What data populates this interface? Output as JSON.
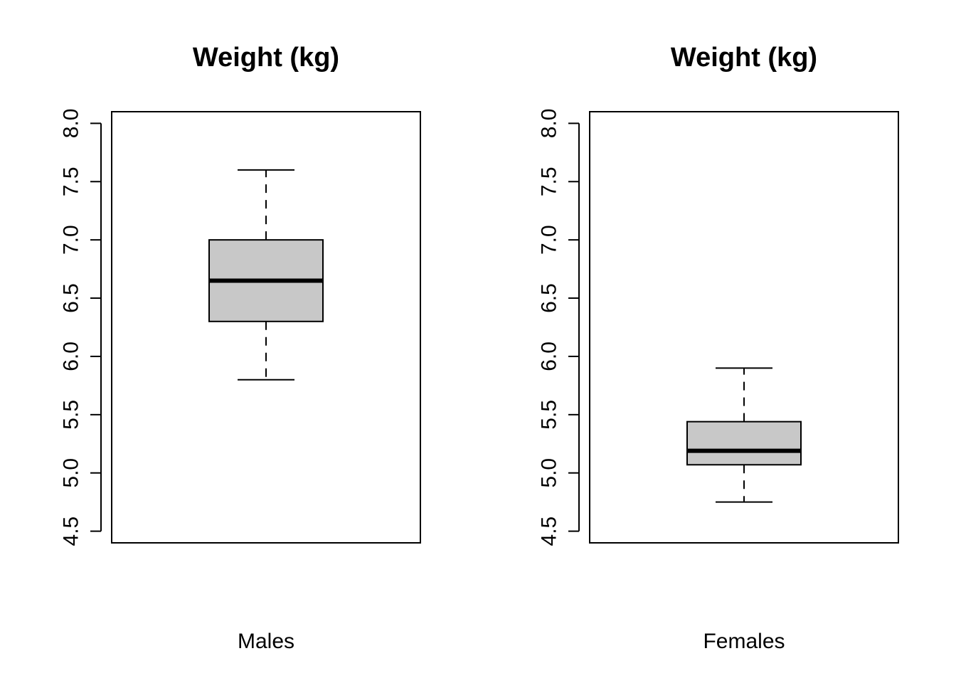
{
  "chart_data": [
    {
      "type": "box",
      "title": "Weight (kg)",
      "xlabel": "Males",
      "ylabel": "",
      "ylim": [
        4.4,
        8.1
      ],
      "yticks": [
        4.5,
        5.0,
        5.5,
        6.0,
        6.5,
        7.0,
        7.5,
        8.0
      ],
      "ytick_labels": [
        "4.5",
        "5.0",
        "5.5",
        "6.0",
        "6.5",
        "7.0",
        "7.5",
        "8.0"
      ],
      "grid": false,
      "box_color": "#c8c8c8",
      "box": {
        "min": 5.8,
        "q1": 6.3,
        "median": 6.65,
        "q3": 7.0,
        "max": 7.6
      }
    },
    {
      "type": "box",
      "title": "Weight (kg)",
      "xlabel": "Females",
      "ylabel": "",
      "ylim": [
        4.4,
        8.1
      ],
      "yticks": [
        4.5,
        5.0,
        5.5,
        6.0,
        6.5,
        7.0,
        7.5,
        8.0
      ],
      "ytick_labels": [
        "4.5",
        "5.0",
        "5.5",
        "6.0",
        "6.5",
        "7.0",
        "7.5",
        "8.0"
      ],
      "grid": false,
      "box_color": "#c8c8c8",
      "box": {
        "min": 4.75,
        "q1": 5.07,
        "median": 5.19,
        "q3": 5.44,
        "max": 5.9
      }
    }
  ]
}
